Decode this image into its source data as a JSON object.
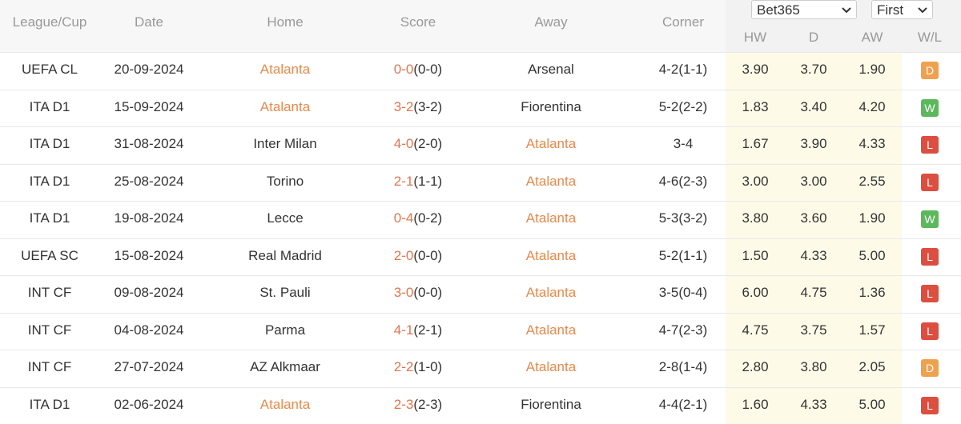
{
  "header": {
    "columns": [
      "League/Cup",
      "Date",
      "Home",
      "Score",
      "Away",
      "Corner"
    ],
    "selects": [
      "Bet365",
      "First"
    ],
    "odds_columns": [
      "HW",
      "D",
      "AW",
      "W/L"
    ]
  },
  "rows": [
    {
      "league": "UEFA CL",
      "date": "20-09-2024",
      "home": "Atalanta",
      "score": "0-0",
      "half": "(0-0)",
      "away": "Arsenal",
      "corner": "4-2(1-1)",
      "hw": "3.90",
      "d": "3.70",
      "aw": "1.90",
      "result": "D",
      "home_highlight": true
    },
    {
      "league": "ITA D1",
      "date": "15-09-2024",
      "home": "Atalanta",
      "score": "3-2",
      "half": "(3-2)",
      "away": "Fiorentina",
      "corner": "5-2(2-2)",
      "hw": "1.83",
      "d": "3.40",
      "aw": "4.20",
      "result": "W",
      "home_highlight": true
    },
    {
      "league": "ITA D1",
      "date": "31-08-2024",
      "home": "Inter Milan",
      "score": "4-0",
      "half": "(2-0)",
      "away": "Atalanta",
      "corner": "3-4",
      "hw": "1.67",
      "d": "3.90",
      "aw": "4.33",
      "result": "L",
      "home_highlight": false
    },
    {
      "league": "ITA D1",
      "date": "25-08-2024",
      "home": "Torino",
      "score": "2-1",
      "half": "(1-1)",
      "away": "Atalanta",
      "corner": "4-6(2-3)",
      "hw": "3.00",
      "d": "3.00",
      "aw": "2.55",
      "result": "L",
      "home_highlight": false
    },
    {
      "league": "ITA D1",
      "date": "19-08-2024",
      "home": "Lecce",
      "score": "0-4",
      "half": "(0-2)",
      "away": "Atalanta",
      "corner": "5-3(3-2)",
      "hw": "3.80",
      "d": "3.60",
      "aw": "1.90",
      "result": "W",
      "home_highlight": false
    },
    {
      "league": "UEFA SC",
      "date": "15-08-2024",
      "home": "Real Madrid",
      "score": "2-0",
      "half": "(0-0)",
      "away": "Atalanta",
      "corner": "5-2(1-1)",
      "hw": "1.50",
      "d": "4.33",
      "aw": "5.00",
      "result": "L",
      "home_highlight": false
    },
    {
      "league": "INT CF",
      "date": "09-08-2024",
      "home": "St. Pauli",
      "score": "3-0",
      "half": "(0-0)",
      "away": "Atalanta",
      "corner": "3-5(0-4)",
      "hw": "6.00",
      "d": "4.75",
      "aw": "1.36",
      "result": "L",
      "home_highlight": false
    },
    {
      "league": "INT CF",
      "date": "04-08-2024",
      "home": "Parma",
      "score": "4-1",
      "half": "(2-1)",
      "away": "Atalanta",
      "corner": "4-7(2-3)",
      "hw": "4.75",
      "d": "3.75",
      "aw": "1.57",
      "result": "L",
      "home_highlight": false
    },
    {
      "league": "INT CF",
      "date": "27-07-2024",
      "home": "AZ Alkmaar",
      "score": "2-2",
      "half": "(1-0)",
      "away": "Atalanta",
      "corner": "2-8(1-4)",
      "hw": "2.80",
      "d": "3.80",
      "aw": "2.05",
      "result": "D",
      "home_highlight": false
    },
    {
      "league": "ITA D1",
      "date": "02-06-2024",
      "home": "Atalanta",
      "score": "2-3",
      "half": "(2-3)",
      "away": "Fiorentina",
      "corner": "4-4(2-1)",
      "hw": "1.60",
      "d": "4.33",
      "aw": "5.00",
      "result": "L",
      "home_highlight": true
    }
  ]
}
